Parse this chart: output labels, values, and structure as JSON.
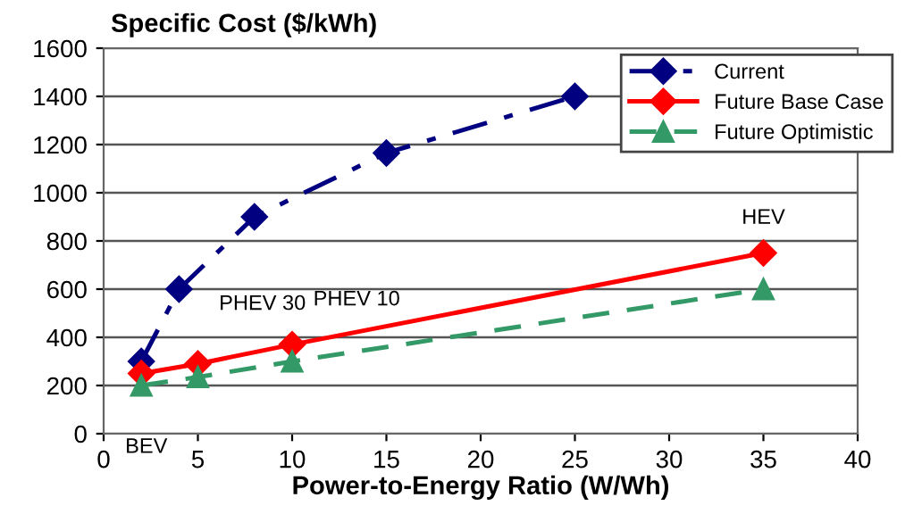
{
  "chart_data": {
    "type": "line",
    "title": "Specific Cost ($/kWh)",
    "xlabel": "Power-to-Energy Ratio (W/Wh)",
    "series": [
      {
        "name": "Current",
        "color": "#000080",
        "x": [
          2,
          4,
          8,
          15,
          25
        ],
        "values": [
          300,
          600,
          900,
          1165,
          1400
        ],
        "marker": "diamond",
        "line_style": "dashdot"
      },
      {
        "name": "Future Base Case",
        "color": "#ff0000",
        "x": [
          2,
          5,
          10,
          35
        ],
        "values": [
          250,
          290,
          370,
          750
        ],
        "marker": "diamond",
        "line_style": "solid"
      },
      {
        "name": "Future Optimistic",
        "color": "#339966",
        "x": [
          2,
          5,
          10,
          35
        ],
        "values": [
          200,
          235,
          300,
          600
        ],
        "marker": "triangle",
        "line_style": "dashed"
      }
    ],
    "annotations": [
      {
        "text": "BEV",
        "x": 2,
        "y": 200
      },
      {
        "text": "PHEV 30",
        "x": 5,
        "y": 290
      },
      {
        "text": "PHEV 10",
        "x": 10,
        "y": 370
      },
      {
        "text": "HEV",
        "x": 35,
        "y": 750
      }
    ],
    "xlim": [
      0,
      40
    ],
    "xticks": [
      0,
      5,
      10,
      15,
      20,
      25,
      30,
      35,
      40
    ],
    "ylim": [
      0,
      1600
    ],
    "yticks": [
      0,
      200,
      400,
      600,
      800,
      1000,
      1200,
      1400,
      1600
    ],
    "grid": "y",
    "legend": "top right"
  }
}
